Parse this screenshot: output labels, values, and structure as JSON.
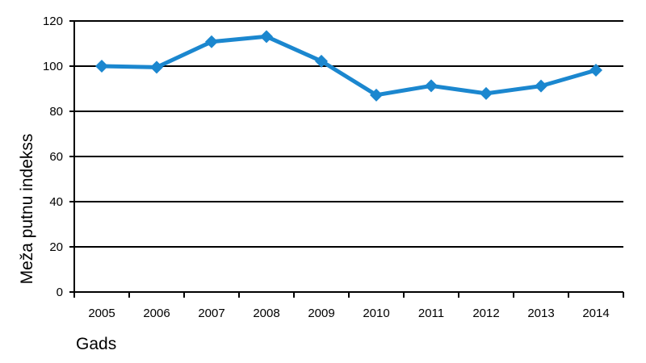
{
  "chart_data": {
    "type": "line",
    "title": "",
    "xlabel": "Gads",
    "ylabel": "Meža putnu indekss",
    "categories": [
      "2005",
      "2006",
      "2007",
      "2008",
      "2009",
      "2010",
      "2011",
      "2012",
      "2013",
      "2014"
    ],
    "series": [
      {
        "values": [
          100,
          99.5,
          110.8,
          113.1,
          102.2,
          87.2,
          91.3,
          87.9,
          91.2,
          98.2
        ]
      }
    ],
    "ylim": [
      0,
      120
    ],
    "yticks": [
      "0",
      "20",
      "40",
      "60",
      "80",
      "100",
      "120"
    ],
    "grid": "horizontal",
    "legend": "none",
    "colors": {
      "series": "#1b87cf",
      "grid": "#000000",
      "axis": "#000000"
    }
  }
}
